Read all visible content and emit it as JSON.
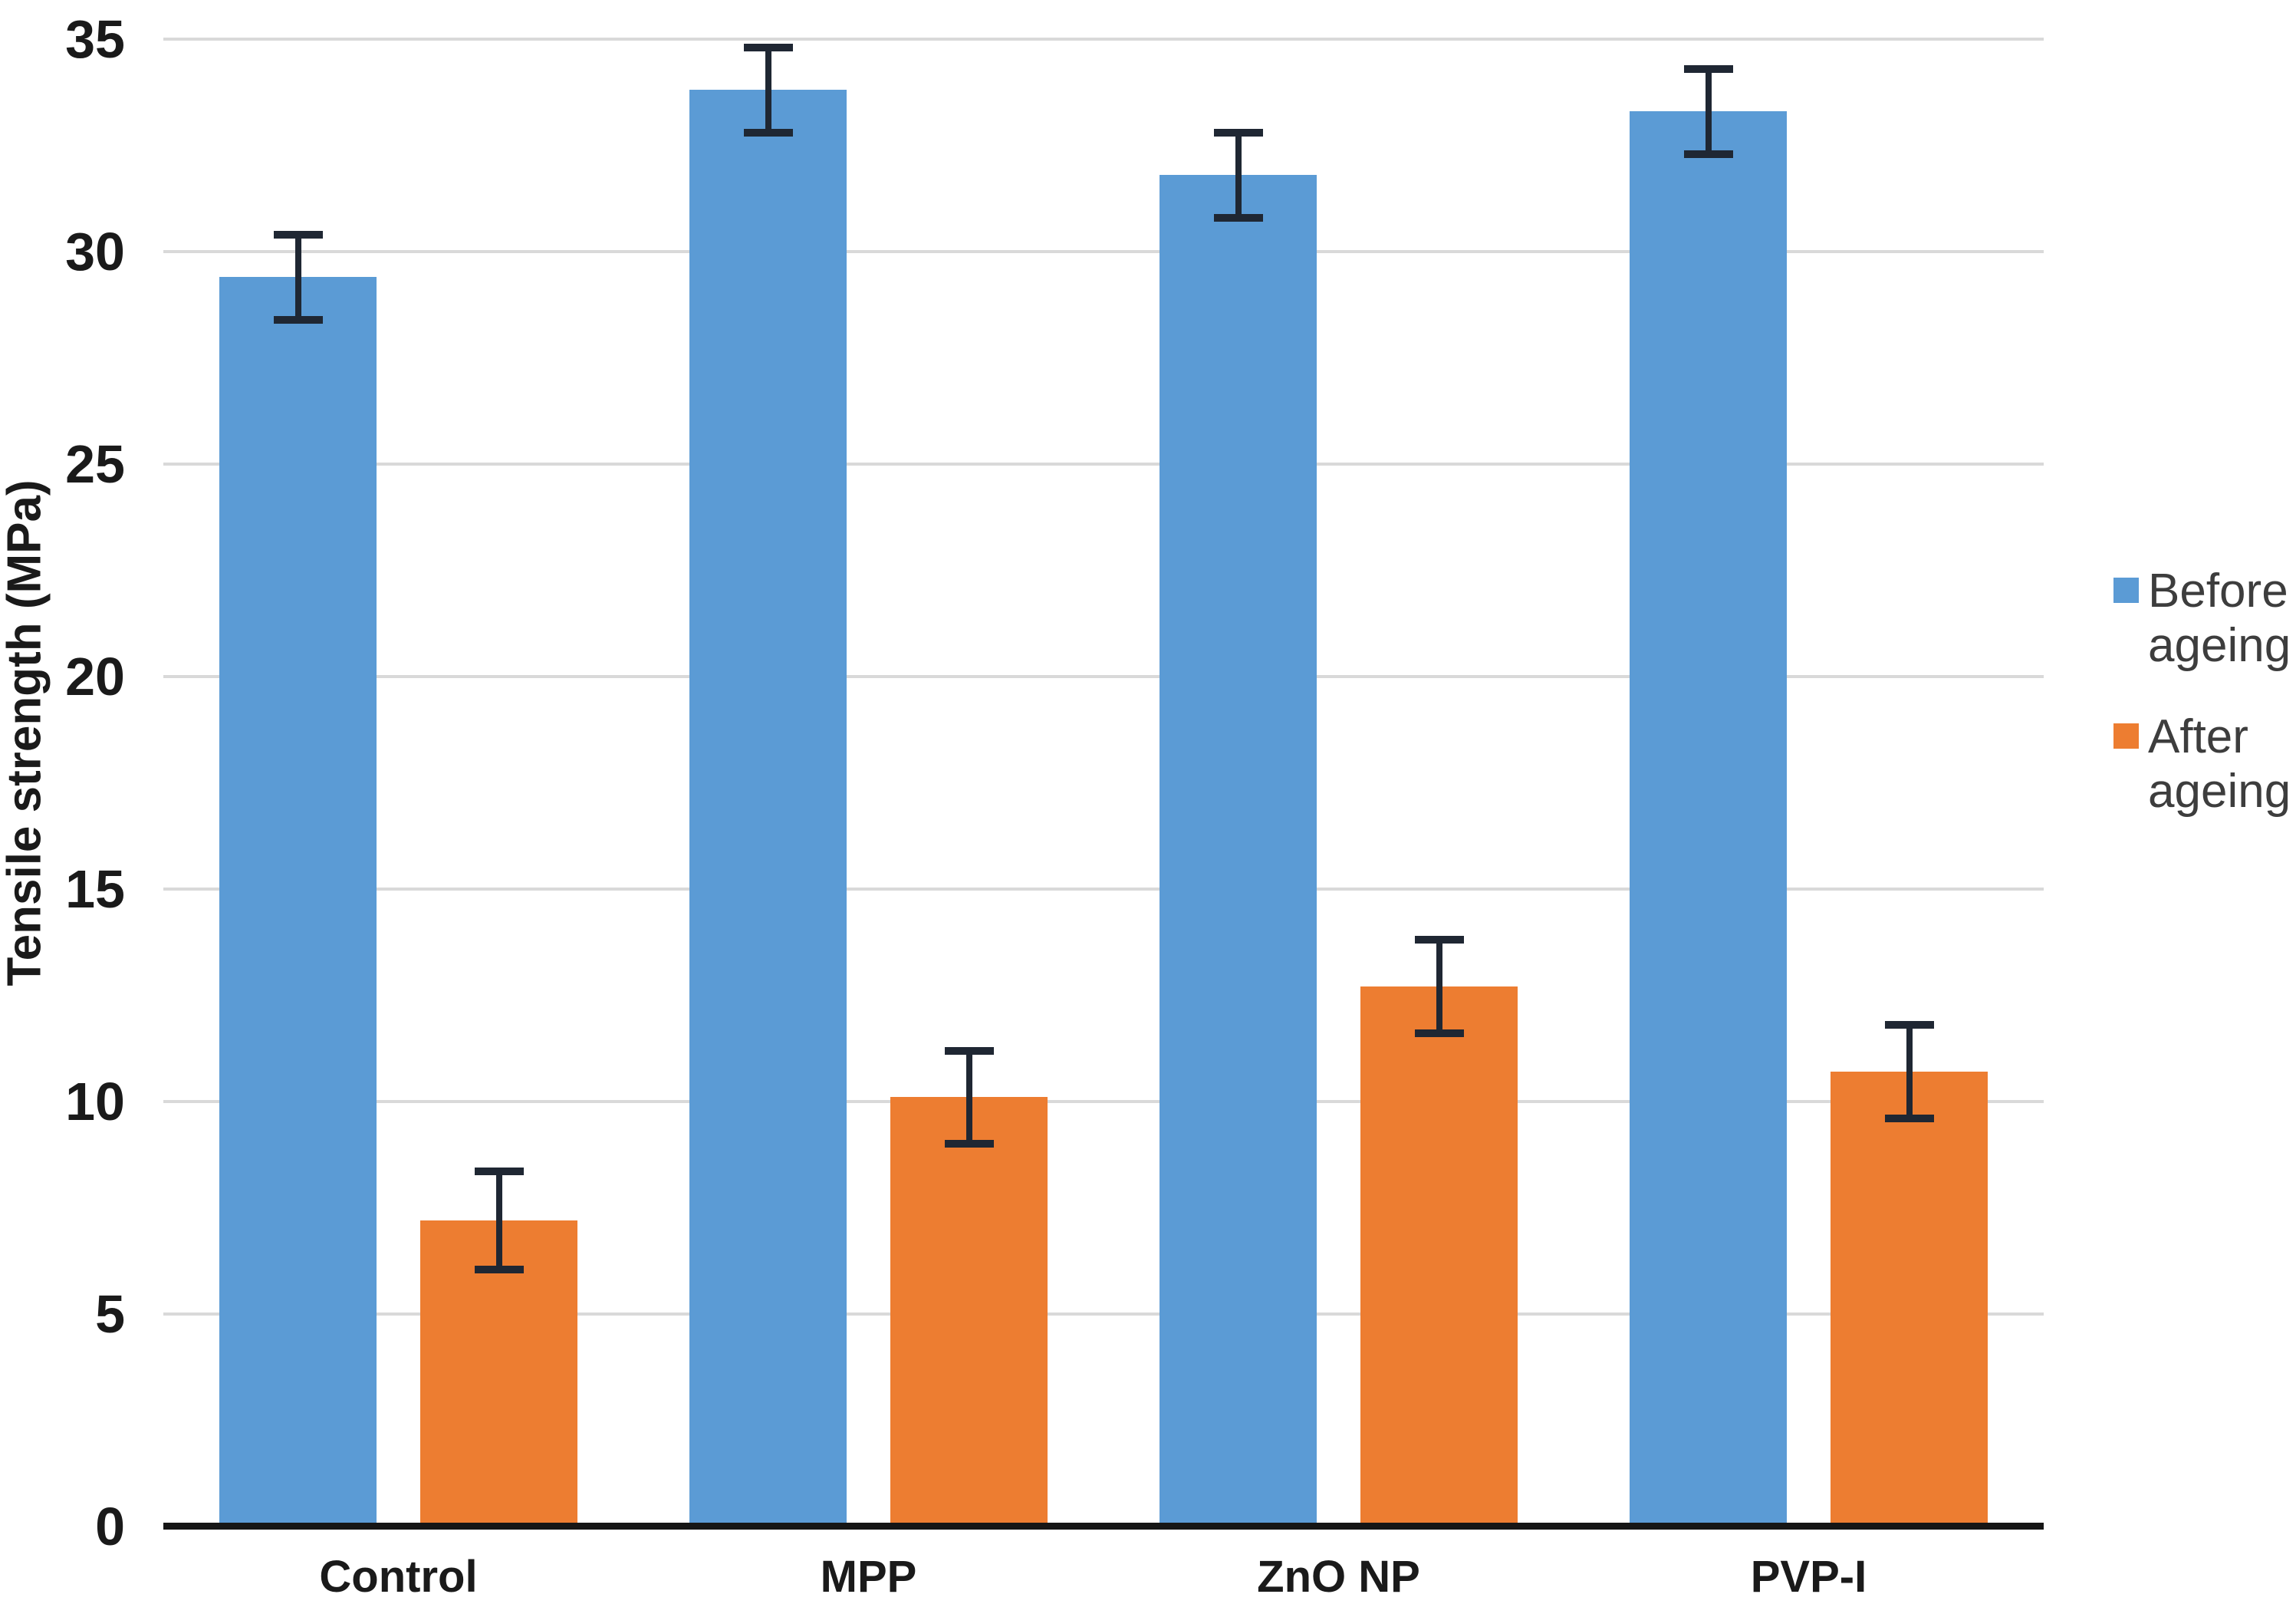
{
  "chart_data": {
    "type": "bar",
    "title": "",
    "categories": [
      "Control",
      "MPP",
      "ZnO NP",
      "PVP-I"
    ],
    "series": [
      {
        "name": "Before ageing",
        "color": "#5B9BD5",
        "values": [
          29.4,
          33.8,
          31.8,
          33.3
        ],
        "errors": [
          1.0,
          1.0,
          1.0,
          1.0
        ]
      },
      {
        "name": "After ageing",
        "color": "#ED7D31",
        "values": [
          7.2,
          10.1,
          12.7,
          10.7
        ],
        "errors": [
          1.15,
          1.1,
          1.1,
          1.1
        ]
      }
    ],
    "xlabel": "",
    "ylabel": "Tensile strength (MPa)",
    "ylim": [
      0,
      35
    ],
    "ytick_step": 5,
    "yticks": [
      0,
      5,
      10,
      15,
      20,
      25,
      30,
      35
    ],
    "grid": "horizontal",
    "legend_position": "right",
    "error_bars": true
  },
  "legend": {
    "items": [
      {
        "label": "Before ageing",
        "color": "#5B9BD5"
      },
      {
        "label": "After ageing",
        "color": "#ED7D31"
      }
    ]
  },
  "axes": {
    "y_tick_labels": [
      "35",
      "30",
      "25",
      "20",
      "15",
      "10",
      "5",
      "0"
    ],
    "x_tick_labels": [
      "Control",
      "MPP",
      "ZnO NP",
      "PVP-I"
    ]
  },
  "colors": {
    "before_bar": "#5B9BD5",
    "after_bar": "#ED7D31",
    "gridline": "#D9D9D9",
    "axis_line": "#161616",
    "error_bar": "#1F2733",
    "label_text": "#1A1A1A",
    "legend_text": "#3D3D3D",
    "background": "#FFFFFF"
  }
}
